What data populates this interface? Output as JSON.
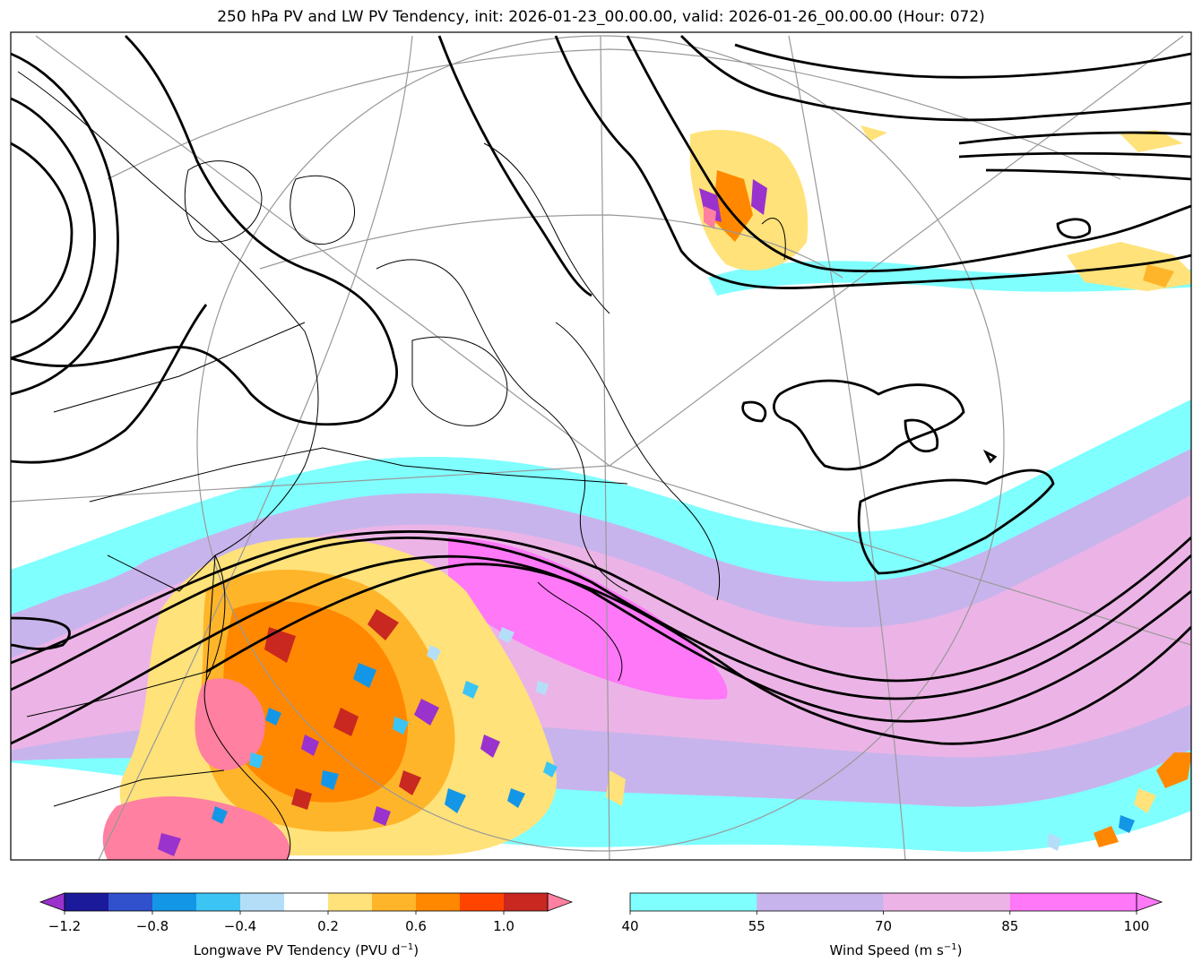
{
  "title": "250 hPa PV and LW PV Tendency, init: 2026-01-23_00.00.00, valid: 2026-01-26_00.00.00 (Hour: 072)",
  "colorbar_left": {
    "label": "Longwave PV Tendency (PVU d",
    "label_sup": "−1",
    "label_end": ")",
    "ticks": [
      "−1.2",
      "−0.8",
      "−0.4",
      "0.2",
      "0.6",
      "1.0"
    ],
    "colors": [
      "#1a1a9a",
      "#3050cc",
      "#1496e6",
      "#3cc4f5",
      "#b4def8",
      "#ffffff",
      "#ffe27a",
      "#ffb52a",
      "#ff8800",
      "#ff4400",
      "#c82820"
    ],
    "under_color": "#9a32cd",
    "over_color": "#ff80a0"
  },
  "colorbar_right": {
    "label": "Wind Speed (m s",
    "label_sup": "−1",
    "label_end": ")",
    "ticks": [
      "40",
      "55",
      "70",
      "85",
      "100"
    ],
    "colors": [
      "#80ffff",
      "#c8b4ec",
      "#ecb4e6",
      "#ff78f8"
    ],
    "over_color": "#ff78f8"
  }
}
